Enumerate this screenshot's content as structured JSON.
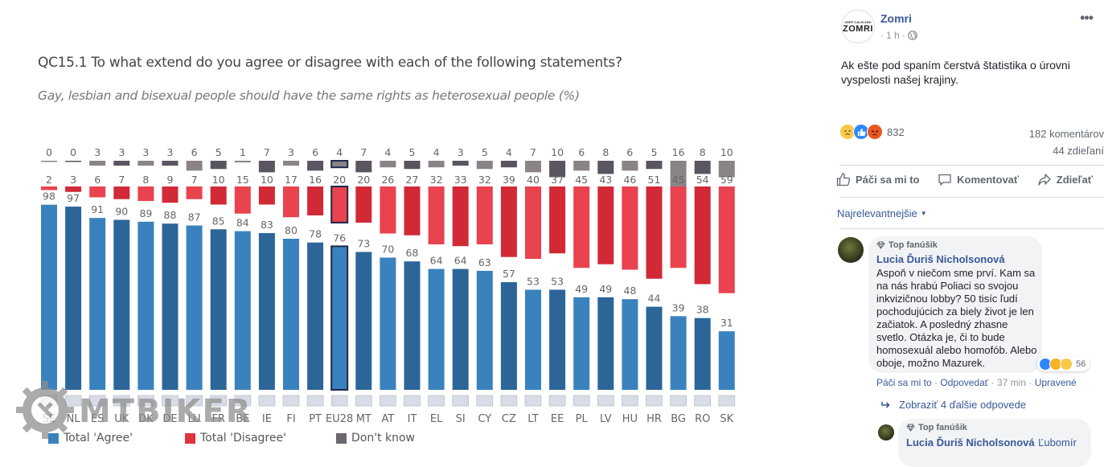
{
  "chart_data": {
    "type": "bar",
    "title": "QC15.1 To what extend do you agree or disagree with each of the following statements?",
    "subtitle": "Gay, lesbian and bisexual people should have the same rights as heterosexual people (%)",
    "xlabel": "",
    "ylabel": "",
    "ylim": [
      0,
      100
    ],
    "grid": false,
    "legend_position": "bottom-left",
    "categories": [
      "SE",
      "NL",
      "ES",
      "UK",
      "DK",
      "DE",
      "LU",
      "FR",
      "BE",
      "IE",
      "FI",
      "PT",
      "EU28",
      "MT",
      "AT",
      "IT",
      "EL",
      "SI",
      "CY",
      "CZ",
      "LT",
      "EE",
      "PL",
      "LV",
      "HU",
      "HR",
      "BG",
      "RO",
      "SK"
    ],
    "highlighted_category": "EU28",
    "series": [
      {
        "name": "Total 'Agree'",
        "color": "#3a82bd",
        "values": [
          98,
          97,
          91,
          90,
          89,
          88,
          87,
          85,
          84,
          83,
          80,
          78,
          76,
          73,
          70,
          68,
          64,
          64,
          63,
          57,
          53,
          53,
          49,
          49,
          48,
          44,
          39,
          38,
          31
        ]
      },
      {
        "name": "Total 'Disagree'",
        "color": "#e0323e",
        "values": [
          2,
          3,
          6,
          7,
          8,
          9,
          7,
          10,
          15,
          10,
          17,
          16,
          20,
          20,
          26,
          27,
          32,
          33,
          32,
          39,
          40,
          37,
          45,
          43,
          46,
          51,
          45,
          54,
          59
        ]
      },
      {
        "name": "Don't know",
        "color": "#6b6670",
        "values": [
          0,
          0,
          3,
          3,
          3,
          3,
          6,
          5,
          1,
          7,
          3,
          6,
          4,
          7,
          4,
          5,
          4,
          3,
          5,
          4,
          7,
          10,
          6,
          8,
          6,
          5,
          16,
          8,
          10
        ]
      }
    ]
  },
  "colors": {
    "agree_light": "#3a82bd",
    "agree_dark": "#2c6699",
    "disagree_light": "#e8434e",
    "disagree_dark": "#d12a36",
    "dontknow_light": "#8a8489",
    "dontknow_dark": "#5a5560",
    "fb_link": "#385898"
  },
  "watermark": "MTBIKER",
  "post": {
    "page_name": "Zomri",
    "avatar_small_text": "KEEP CALM AND",
    "avatar_big_text": "ZOMRI",
    "time": "1 h",
    "text": "Ak ešte pod spaním čerstvá štatistika o úrovni vyspelosti našej krajiny.",
    "reactions_count": "832",
    "comments_count": "182 komentárov",
    "shares_count": "44 zdieľaní",
    "actions": {
      "like": "Páči sa mi to",
      "comment": "Komentovať",
      "share": "Zdieľať"
    },
    "sort_label": "Najrelevantnejšie"
  },
  "comments": [
    {
      "badge": "Top fanúšik",
      "author": "Lucia Ďuriš Nicholsonová",
      "text": "Aspoň v niečom sme prví. Kam sa na nás hrabú Poliaci so svojou inkvizičnou lobby? 50 tisíc ľudí pochodujúcich za biely život je len začiatok. A posledný zhasne svetlo. Otázka je, či to bude homosexuál alebo homofób. Alebo oboje, možno Mazurek.",
      "reactions_count": "56",
      "like": "Páči sa mi to",
      "reply": "Odpovedať",
      "time": "37 min",
      "edited": "Upravené",
      "more_replies": "Zobraziť 4 ďalšie odpovede"
    },
    {
      "badge": "Top fanúšik",
      "author": "Lucia Ďuriš Nicholsonová",
      "mention": "Ľubomír"
    }
  ]
}
